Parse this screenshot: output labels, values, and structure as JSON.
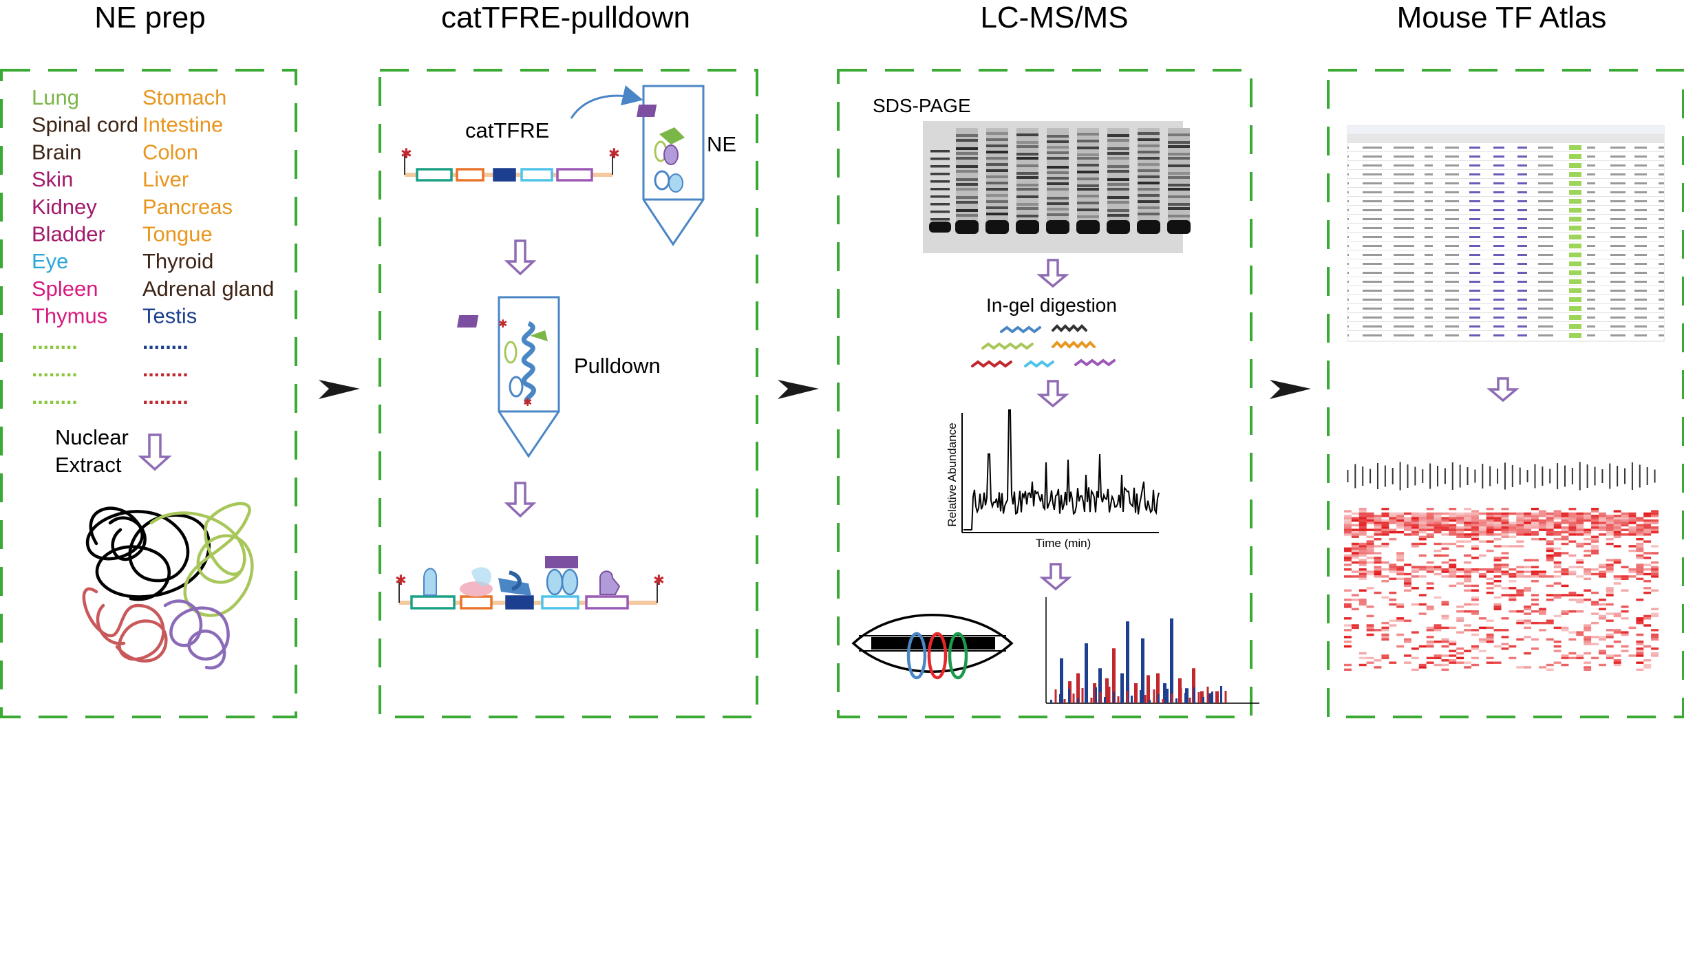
{
  "panels": {
    "ne_prep": {
      "title": "NE prep",
      "tissues_left": [
        {
          "name": "Lung",
          "color": "#7ab648"
        },
        {
          "name": "Spinal cord",
          "color": "#3d2314"
        },
        {
          "name": "Brain",
          "color": "#3d2314"
        },
        {
          "name": "Skin",
          "color": "#a3196b"
        },
        {
          "name": "Kidney",
          "color": "#a3196b"
        },
        {
          "name": "Bladder",
          "color": "#a3196b"
        },
        {
          "name": "Eye",
          "color": "#2ba8d6"
        },
        {
          "name": "Spleen",
          "color": "#d61a7f"
        },
        {
          "name": "Thymus",
          "color": "#d61a7f"
        }
      ],
      "tissues_right": [
        {
          "name": "Stomach",
          "color": "#e8961e"
        },
        {
          "name": "Intestine",
          "color": "#e8961e"
        },
        {
          "name": "Colon",
          "color": "#e8961e"
        },
        {
          "name": "Liver",
          "color": "#e8961e"
        },
        {
          "name": "Pancreas",
          "color": "#e8961e"
        },
        {
          "name": "Tongue",
          "color": "#e8961e"
        },
        {
          "name": "Thyroid",
          "color": "#3d2314"
        },
        {
          "name": "Adrenal gland",
          "color": "#3d2314"
        },
        {
          "name": "Testis",
          "color": "#1d3f8f"
        }
      ],
      "ellipsis_left": [
        {
          "text": "........",
          "color": "#8cc63f"
        },
        {
          "text": "........",
          "color": "#8cc63f"
        },
        {
          "text": "........",
          "color": "#8cc63f"
        }
      ],
      "ellipsis_right": [
        {
          "text": "........",
          "color": "#1d3f8f"
        },
        {
          "text": "........",
          "color": "#c1272d"
        },
        {
          "text": "........",
          "color": "#c1272d"
        }
      ],
      "extract_line1": "Nuclear",
      "extract_line2": "Extract"
    },
    "pulldown": {
      "title": "catTFRE-pulldown",
      "cattfre_label": "catTFRE",
      "ne_label": "NE",
      "pulldown_label": "Pulldown"
    },
    "lcms": {
      "title": "LC-MS/MS",
      "gel_label": "SDS-PAGE",
      "digestion_label": "In-gel digestion",
      "y_axis_label": "Relative Abundance",
      "x_axis_label": "Time (min)"
    },
    "atlas": {
      "title": "Mouse TF Atlas"
    }
  },
  "colors": {
    "dash_border": "#3aaa35",
    "arrow_down": "#8e6bb3",
    "arrow_right": "#1a1a1a",
    "tube": "#4a86c5",
    "heatmap": "#e31a1c"
  }
}
